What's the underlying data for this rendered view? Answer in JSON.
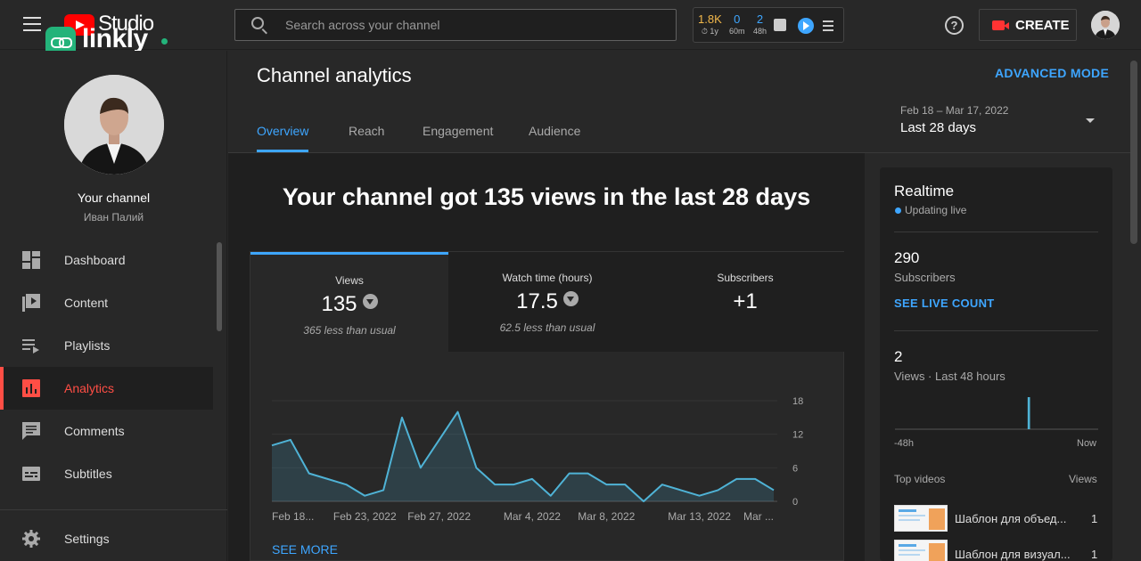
{
  "header": {
    "brand": "Studio",
    "overlay_brand": "linkly",
    "search_placeholder": "Search across your channel",
    "stats": [
      {
        "value": "1.8K",
        "period": "1y",
        "color": "#f2b84b"
      },
      {
        "value": "0",
        "period": "60m",
        "color": "#3ea6ff"
      },
      {
        "value": "2",
        "period": "48h",
        "color": "#3ea6ff"
      }
    ],
    "help_glyph": "?",
    "create_label": "CREATE"
  },
  "sidebar": {
    "channel_label": "Your channel",
    "channel_name": "Иван Палий",
    "items": [
      {
        "label": "Dashboard",
        "icon": "dashboard-icon",
        "active": false
      },
      {
        "label": "Content",
        "icon": "content-icon",
        "active": false
      },
      {
        "label": "Playlists",
        "icon": "playlists-icon",
        "active": false
      },
      {
        "label": "Analytics",
        "icon": "analytics-icon",
        "active": true
      },
      {
        "label": "Comments",
        "icon": "comments-icon",
        "active": false
      },
      {
        "label": "Subtitles",
        "icon": "subtitles-icon",
        "active": false
      }
    ],
    "settings_label": "Settings"
  },
  "main": {
    "title": "Channel analytics",
    "advanced_mode": "ADVANCED MODE",
    "tabs": [
      {
        "label": "Overview",
        "active": true
      },
      {
        "label": "Reach",
        "active": false
      },
      {
        "label": "Engagement",
        "active": false
      },
      {
        "label": "Audience",
        "active": false
      }
    ],
    "date_range": "Feb 18 – Mar 17, 2022",
    "date_preset": "Last 28 days",
    "headline": "Your channel got 135 views in the last 28 days",
    "metrics": [
      {
        "label": "Views",
        "value": "135",
        "note": "365 less than usual",
        "trend": "down"
      },
      {
        "label": "Watch time (hours)",
        "value": "17.5",
        "note": "62.5 less than usual",
        "trend": "down"
      },
      {
        "label": "Subscribers",
        "value": "+1",
        "note": "",
        "trend": ""
      }
    ],
    "see_more": "SEE MORE"
  },
  "chart_data": {
    "type": "area",
    "title": "",
    "xlabel": "",
    "ylabel": "",
    "x_tick_labels": [
      "Feb 18...",
      "Feb 23, 2022",
      "Feb 27, 2022",
      "Mar 4, 2022",
      "Mar 8, 2022",
      "Mar 13, 2022",
      "Mar ..."
    ],
    "y_ticks": [
      0,
      6,
      12,
      18
    ],
    "ylim": [
      0,
      18
    ],
    "grid": "horizontal",
    "series": [
      {
        "values": [
          10,
          11,
          5,
          4,
          3,
          1,
          2,
          15,
          6,
          11,
          16,
          6,
          3,
          3,
          4,
          1,
          5,
          5,
          3,
          3,
          0,
          3,
          2,
          1,
          2,
          4,
          4,
          2
        ],
        "color": "#4fb3d6"
      }
    ]
  },
  "realtime": {
    "title": "Realtime",
    "status": "Updating live",
    "subscribers_value": "290",
    "subscribers_label": "Subscribers",
    "see_live_count": "SEE LIVE COUNT",
    "views_value": "2",
    "views_label": "Views · Last 48 hours",
    "axis_start": "-48h",
    "axis_end": "Now",
    "spark_values": [
      0,
      0,
      0,
      0,
      0,
      0,
      0,
      0,
      0,
      0,
      0,
      0,
      0,
      0,
      0,
      0,
      0,
      0,
      0,
      0,
      0,
      0,
      0,
      0,
      0,
      0,
      0,
      0,
      0,
      0,
      0,
      0,
      0,
      0,
      0,
      0,
      0,
      0,
      0,
      0,
      0,
      0,
      0,
      0,
      0,
      0,
      0,
      2,
      0,
      0,
      0,
      0,
      0,
      0,
      0,
      0,
      0,
      0,
      0,
      0,
      0,
      0,
      0,
      0,
      0,
      0,
      0,
      0,
      0,
      0,
      0,
      0
    ],
    "top_videos_label": "Top videos",
    "views_column_label": "Views",
    "top_videos": [
      {
        "title": "Шаблон для объед...",
        "views": "1"
      },
      {
        "title": "Шаблон для визуал...",
        "views": "1"
      }
    ]
  }
}
